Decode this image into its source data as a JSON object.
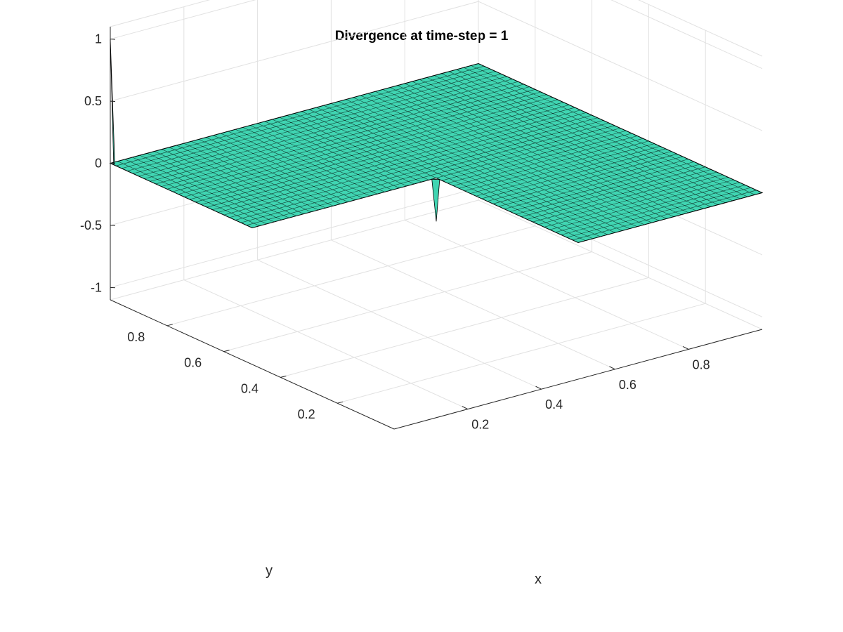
{
  "chart_data": {
    "type": "surface",
    "title": "Divergence at time-step = 1",
    "xlabel": "x",
    "ylabel": "y",
    "zlabel": "",
    "domain": "L-shaped",
    "grid_resolution": 50,
    "xlim": [
      0,
      1
    ],
    "ylim": [
      0,
      1
    ],
    "zlim": [
      -1.1,
      1.1
    ],
    "x_ticks": [
      0.2,
      0.4,
      0.6,
      0.8
    ],
    "y_ticks": [
      0.2,
      0.4,
      0.6,
      0.8
    ],
    "z_ticks": [
      -1,
      -0.5,
      0,
      0.5,
      1
    ],
    "x_tick_labels": [
      "0.2",
      "0.4",
      "0.6",
      "0.8"
    ],
    "y_tick_labels": [
      "0.2",
      "0.4",
      "0.6",
      "0.8"
    ],
    "z_tick_labels": [
      "-1",
      "-0.5",
      "0",
      "0.5",
      "1"
    ],
    "surface_value": 0,
    "spikes": [
      {
        "x": 0,
        "y": 1,
        "z": 1
      },
      {
        "x": 0.5,
        "y": 0.5,
        "z": -0.35
      }
    ],
    "face_color": "#40d5b2",
    "edge_color": "#000000",
    "grid": true
  }
}
